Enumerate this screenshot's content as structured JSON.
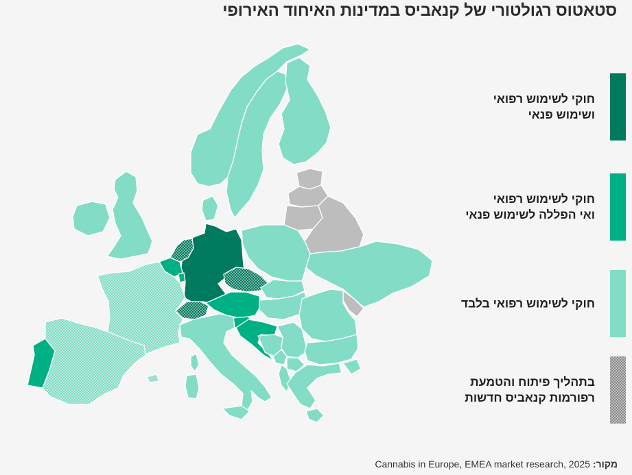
{
  "title": "סטאטוס רגולטורי של קנאביס במדינות האיחוד האירופי",
  "colors": {
    "recreational": "#007A5E",
    "pilot": "#00B085",
    "medical": "#83DCC5",
    "reform": "#888888",
    "not_eu": "#BDBDBD",
    "background": "#F5F5F5"
  },
  "legend": [
    {
      "key": "recreational",
      "label": "חוקי לשימוש רפואי\nושימוש פנאי",
      "pattern": "solid"
    },
    {
      "key": "pilot",
      "label": "חוקי לשימוש רפואי\nואי הפללה לשימוש פנאי",
      "pattern": "solid"
    },
    {
      "key": "medical",
      "label": "חוקי לשימוש רפואי בלבד",
      "pattern": "solid"
    },
    {
      "key": "reform",
      "label": "בתהליך פיתוח והטמעת\nרפורמות קנאביס חדשות",
      "pattern": "dots"
    }
  ],
  "source": {
    "label": "מקור:",
    "text": "Cannabis in Europe, EMEA market research, 2025"
  }
}
